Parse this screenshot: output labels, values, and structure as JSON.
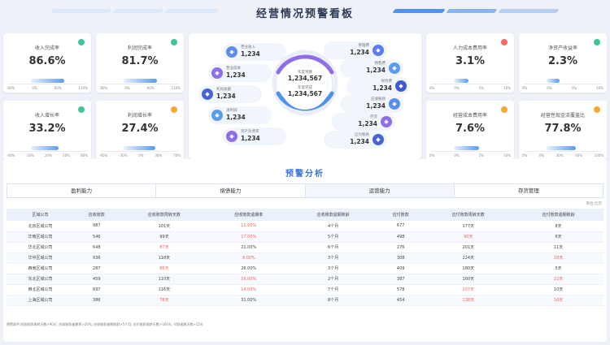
{
  "title": "经营情况预警看板",
  "colors": {
    "green": "#3dc69b",
    "red": "#f46b6b",
    "orange": "#f7a830",
    "accent": "#3a73d9"
  },
  "kpis": [
    {
      "name": "收入完成率",
      "value": "86.6%",
      "status": "green",
      "ticks": [
        "-60%",
        "0%",
        "60%",
        "120%"
      ],
      "fill": 0.74
    },
    {
      "name": "利润完成率",
      "value": "81.7%",
      "status": "green",
      "ticks": [
        "-60%",
        "0%",
        "60%",
        "120%"
      ],
      "fill": 0.73
    },
    {
      "name": "收入增长率",
      "value": "33.2%",
      "status": "green",
      "ticks": [
        "-40%",
        "-10%",
        "20%",
        "50%",
        "80%"
      ],
      "fill": 0.6
    },
    {
      "name": "利润增长率",
      "value": "27.4%",
      "status": "orange",
      "ticks": [
        "-60%",
        "-30%",
        "0%",
        "30%",
        "70%"
      ],
      "fill": 0.7
    },
    {
      "name": "人力成本费用率",
      "value": "3.1%",
      "status": "red",
      "ticks": [
        "0%",
        "0%",
        "5%",
        "10%"
      ],
      "fill": 0.33
    },
    {
      "name": "净资产收益率",
      "value": "2.3%",
      "status": "green",
      "ticks": [
        "0%",
        "0%",
        "5%",
        "10%"
      ],
      "fill": 0.28
    },
    {
      "name": "经营成本费用率",
      "value": "7.6%",
      "status": "orange",
      "ticks": [
        "0%",
        "0%",
        "5%",
        "10%"
      ],
      "fill": 0.55
    },
    {
      "name": "经营性现金流覆盖比",
      "value": "77.8%",
      "status": "orange",
      "ticks": [
        "0%",
        "0%",
        "30%",
        "60%",
        "100%"
      ],
      "fill": 0.65
    }
  ],
  "center": {
    "left_items": [
      {
        "label": "营业收入",
        "value": "1,234",
        "icon": "wallet-icon",
        "color": "#5b8def"
      },
      {
        "label": "营业成本",
        "value": "1,234",
        "icon": "chart-icon",
        "color": "#8f6ee8"
      },
      {
        "label": "利润总额",
        "value": "1,234",
        "icon": "document-icon",
        "color": "#4a63d6"
      },
      {
        "label": "净利润",
        "value": "1,234",
        "icon": "coin-icon",
        "color": "#5b9cf0"
      },
      {
        "label": "资产负债率",
        "value": "1,234",
        "icon": "percent-icon",
        "color": "#8f6ee8"
      }
    ],
    "right_items": [
      {
        "label": "管理费",
        "value": "1,234",
        "icon": "mail-icon",
        "color": "#5b7df0"
      },
      {
        "label": "销售费",
        "value": "1,234",
        "icon": "bar-icon",
        "color": "#5b9cf0"
      },
      {
        "label": "财务费",
        "value": "1,234",
        "icon": "box-icon",
        "color": "#3f5bd4"
      },
      {
        "label": "应收账款",
        "value": "1,234",
        "icon": "table-icon",
        "color": "#5b8def"
      },
      {
        "label": "存货",
        "value": "1,234",
        "icon": "grid-icon",
        "color": "#8f6ee8"
      },
      {
        "label": "应付账款",
        "value": "1,234",
        "icon": "list-icon",
        "color": "#4a63d6"
      }
    ],
    "core": [
      {
        "label": "年度预算",
        "value": "1,234,567"
      },
      {
        "label": "年度完成",
        "value": "1,234,567"
      }
    ]
  },
  "section_title": "预警分析",
  "tabs": [
    "盈利能力",
    "偿债能力",
    "运营能力",
    "存货管理"
  ],
  "unit": "单位:亿元",
  "table": {
    "headers": [
      "区域公司",
      "应收账款",
      "应收账款周转天数",
      "应收账款逾期率",
      "应收账款逾期账龄",
      "应付账款",
      "应付账款周转天数",
      "应付账款逾期账龄"
    ],
    "rows": [
      [
        "北京区域公司",
        "987",
        "101天",
        "11.00%",
        "4个月",
        "677",
        "177天",
        "8天"
      ],
      [
        "华南区域公司",
        "546",
        "99天",
        "17.00%",
        "5个月",
        "498",
        "90天",
        "6天"
      ],
      [
        "华北区域公司",
        "648",
        "87天",
        "21.00%",
        "6个月",
        "276",
        "201天",
        "11天"
      ],
      [
        "华中区域公司",
        "936",
        "118天",
        "9.00%",
        "3个月",
        "308",
        "224天",
        "18天"
      ],
      [
        "西南区域公司",
        "287",
        "86天",
        "26.00%",
        "3个月",
        "409",
        "180天",
        "5天"
      ],
      [
        "东北区域公司",
        "459",
        "110天",
        "16.00%",
        "2个月",
        "387",
        "160天",
        "22天"
      ],
      [
        "西北区域公司",
        "697",
        "116天",
        "14.00%",
        "7个月",
        "578",
        "157天",
        "10天"
      ],
      [
        "上海区域公司",
        "386",
        "78天",
        "31.00%",
        "8个月",
        "454",
        "138天",
        "16天"
      ]
    ],
    "red_cells": [
      [
        0,
        3
      ],
      [
        1,
        3
      ],
      [
        1,
        6
      ],
      [
        2,
        2
      ],
      [
        3,
        3
      ],
      [
        3,
        7
      ],
      [
        4,
        2
      ],
      [
        5,
        3
      ],
      [
        5,
        7
      ],
      [
        6,
        3
      ],
      [
        6,
        6
      ],
      [
        7,
        2
      ],
      [
        7,
        6
      ],
      [
        7,
        7
      ]
    ]
  },
  "footnote": "预警条件:应收账款周转天数>90天; 应收账款逾期率>20%; 应收账款逾期账龄>5个月; 应付账款周转天数>160天; 付款逾期天数>15天"
}
